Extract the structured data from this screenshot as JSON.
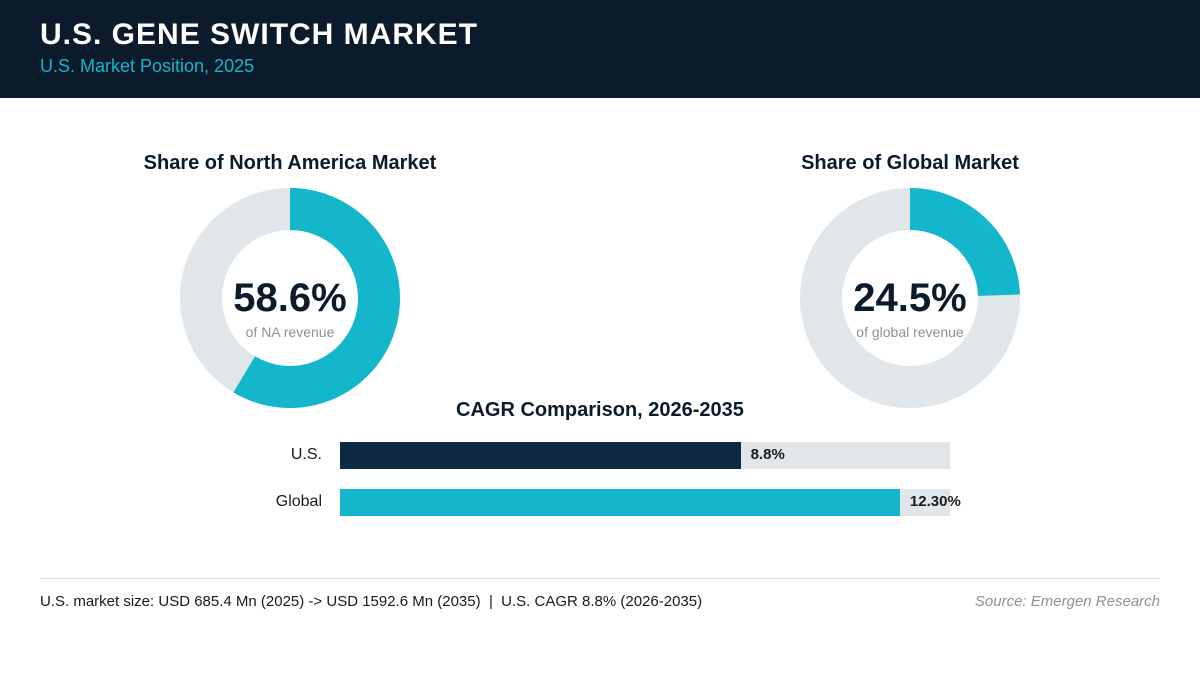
{
  "header": {
    "title": "U.S. GENE SWITCH MARKET",
    "subtitle": "U.S. Market Position, 2025"
  },
  "colors": {
    "header_bg": "#0b1b2b",
    "accent_teal": "#14b6cc",
    "navy": "#0d2a42",
    "track_gray": "#e1e6ea"
  },
  "chart_data": [
    {
      "type": "pie",
      "title": "Share of North America Market",
      "value_label": "58.6%",
      "caption": "of NA revenue",
      "value": 58.6,
      "total": 100,
      "colors": [
        "#14b6cc",
        "#e1e6ea"
      ]
    },
    {
      "type": "pie",
      "title": "Share of Global Market",
      "value_label": "24.5%",
      "caption": "of global revenue",
      "value": 24.5,
      "total": 100,
      "colors": [
        "#14b6cc",
        "#e1e6ea"
      ]
    },
    {
      "type": "bar",
      "orientation": "horizontal",
      "title": "CAGR Comparison, 2026-2035",
      "categories": [
        "U.S.",
        "Global"
      ],
      "values": [
        8.8,
        12.3
      ],
      "value_labels": [
        "8.8%",
        "12.30%"
      ],
      "colors": [
        "#0d2a42",
        "#14b6cc"
      ],
      "xlim": [
        0,
        13.4
      ]
    }
  ],
  "footer": {
    "note": "U.S. market size: USD 685.4 Mn (2025) -> USD 1592.6 Mn (2035)  |  U.S. CAGR 8.8% (2026-2035)",
    "source": "Source: Emergen Research"
  }
}
